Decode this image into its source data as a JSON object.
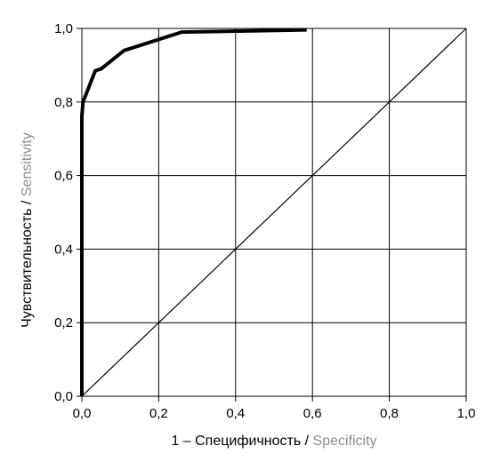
{
  "chart_data": {
    "type": "line",
    "title": "",
    "xlabel": {
      "primary": "1 – Специфичность",
      "separator": " / ",
      "secondary": "Specificity"
    },
    "ylabel": {
      "primary": "Чувствительность",
      "separator": " / ",
      "secondary": "Sensitivity"
    },
    "xlim": [
      0,
      1
    ],
    "ylim": [
      0,
      1
    ],
    "xticks": [
      0,
      0.2,
      0.4,
      0.6,
      0.8,
      1.0
    ],
    "yticks": [
      0,
      0.2,
      0.4,
      0.6,
      0.8,
      1.0
    ],
    "xtick_labels": [
      "0,0",
      "0,2",
      "0,4",
      "0,6",
      "0,8",
      "1,0"
    ],
    "ytick_labels": [
      "0,0",
      "0,2",
      "0,4",
      "0,6",
      "0,8",
      "1,0"
    ],
    "grid": true,
    "series": [
      {
        "x": [
          0.0,
          0.0,
          0.003,
          0.035,
          0.05,
          0.11,
          0.26,
          0.585
        ],
        "y": [
          0.0,
          0.76,
          0.8,
          0.885,
          0.89,
          0.94,
          0.99,
          0.996
        ]
      },
      {
        "x": [
          0,
          1
        ],
        "y": [
          0,
          1
        ]
      }
    ],
    "colors": {
      "curve": "#000000",
      "diagonal": "#000000",
      "grid": "#000000",
      "label_primary": "#000000",
      "label_secondary": "#8c8c8c"
    }
  }
}
